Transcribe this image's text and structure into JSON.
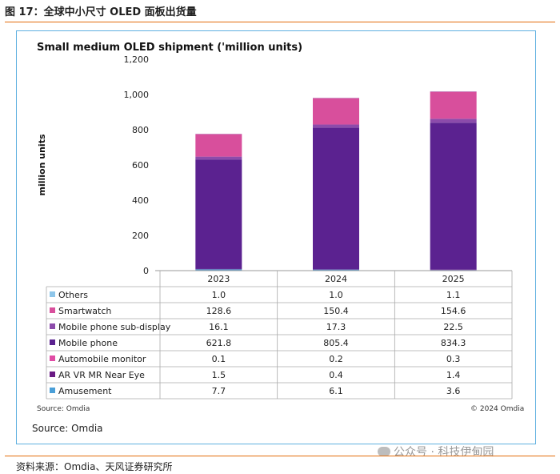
{
  "figure_title": "图 17：全球中小尺寸 OLED 面板出货量",
  "chart_data": {
    "type": "bar",
    "stacked": true,
    "title": "Small medium OLED shipment ('million units)",
    "ylabel": "million units",
    "xlabel": "",
    "ylim": [
      0,
      1200
    ],
    "yticks": [
      "0",
      "200",
      "400",
      "600",
      "800",
      "1,000",
      "1,200"
    ],
    "ytick_values": [
      0,
      200,
      400,
      600,
      800,
      1000,
      1200
    ],
    "categories": [
      "2023",
      "2024",
      "2025"
    ],
    "series": [
      {
        "name": "Amusement",
        "values": [
          7.7,
          6.1,
          3.6
        ],
        "color": "#4a9fd8",
        "labels": [
          "7.7",
          "6.1",
          "3.6"
        ]
      },
      {
        "name": "AR VR MR Near Eye",
        "values": [
          1.5,
          0.4,
          1.4
        ],
        "color": "#6a1a84",
        "labels": [
          "1.5",
          "0.4",
          "1.4"
        ]
      },
      {
        "name": "Automobile monitor",
        "values": [
          0.1,
          0.2,
          0.3
        ],
        "color": "#e04ca5",
        "labels": [
          "0.1",
          "0.2",
          "0.3"
        ]
      },
      {
        "name": "Mobile phone",
        "values": [
          621.8,
          805.4,
          834.3
        ],
        "color": "#5b2290",
        "labels": [
          "621.8",
          "805.4",
          "834.3"
        ]
      },
      {
        "name": "Mobile phone sub-display",
        "values": [
          16.1,
          17.3,
          22.5
        ],
        "color": "#8c4bab",
        "labels": [
          "16.1",
          "17.3",
          "22.5"
        ]
      },
      {
        "name": "Smartwatch",
        "values": [
          128.6,
          150.4,
          154.6
        ],
        "color": "#d84f9c",
        "labels": [
          "128.6",
          "150.4",
          "154.6"
        ]
      },
      {
        "name": "Others",
        "values": [
          1.0,
          1.0,
          1.1
        ],
        "color": "#8ec6ea",
        "labels": [
          "1.0",
          "1.0",
          "1.1"
        ]
      }
    ],
    "table_row_order": [
      "Others",
      "Smartwatch",
      "Mobile phone sub-display",
      "Mobile phone",
      "Automobile monitor",
      "AR VR MR Near Eye",
      "Amusement"
    ],
    "grid": false,
    "legend": "data table below chart"
  },
  "source_small": "Source: Omdia",
  "copyright": "© 2024 Omdia",
  "source_big": "Source: Omdia",
  "watermark": "公众号 · 科技伊甸园",
  "bottom_source": "资料来源：Omdia、天风证券研究所"
}
